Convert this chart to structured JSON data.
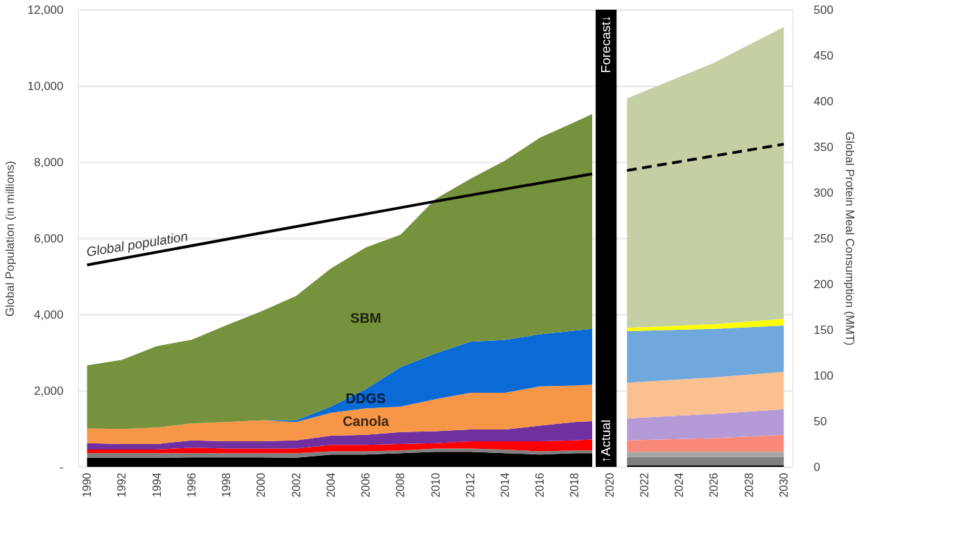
{
  "chart_data": {
    "type": "area",
    "ylabel": "Global Population (in millions)",
    "y2label": "Global Protein Meal Consumption (MMT)",
    "xlim": [
      1989.5,
      2030.5
    ],
    "xticks": [
      1990,
      1992,
      1994,
      1996,
      1998,
      2000,
      2002,
      2004,
      2006,
      2008,
      2010,
      2012,
      2014,
      2016,
      2018,
      2020,
      2022,
      2024,
      2026,
      2028,
      2030
    ],
    "ylim": [
      0,
      12000
    ],
    "yticks": [
      {
        "value": 0,
        "label": "-"
      },
      {
        "value": 2000,
        "label": "2,000"
      },
      {
        "value": 4000,
        "label": "4,000"
      },
      {
        "value": 6000,
        "label": "6,000"
      },
      {
        "value": 8000,
        "label": "8,000"
      },
      {
        "value": 10000,
        "label": "10,000"
      },
      {
        "value": 12000,
        "label": "12,000"
      }
    ],
    "y2lim": [
      0,
      500
    ],
    "y2ticks": [
      0,
      50,
      100,
      150,
      200,
      250,
      300,
      350,
      400,
      450,
      500
    ],
    "stacked": true,
    "grid": "y",
    "x": [
      1990,
      1992,
      1994,
      1996,
      1998,
      2000,
      2002,
      2004,
      2006,
      2008,
      2010,
      2012,
      2014,
      2016,
      2018,
      2019,
      2021,
      2026,
      2030
    ],
    "series": [
      {
        "color": "#000000",
        "axis": "y2",
        "values": [
          10,
          10,
          10,
          10.5,
          10.5,
          10.5,
          10,
          13.5,
          13.5,
          15,
          16.5,
          16.5,
          15,
          13.5,
          15,
          15,
          null,
          null,
          null
        ]
      },
      {
        "color": "#808080",
        "axis": "y2",
        "values": [
          5,
          5,
          5,
          4.5,
          4.5,
          4.5,
          5,
          3.5,
          3.5,
          3,
          3.5,
          3.5,
          4,
          3.5,
          3,
          3,
          null,
          null,
          null
        ]
      },
      {
        "color": "#ff0000",
        "axis": "y2",
        "values": [
          4,
          4,
          4,
          6,
          5,
          5,
          5,
          7,
          7,
          7,
          6,
          8,
          9,
          11,
          11,
          12,
          null,
          null,
          null
        ]
      },
      {
        "color": "#7030a0",
        "axis": "y2",
        "values": [
          7,
          6,
          6,
          8,
          8,
          8,
          9,
          10,
          11,
          13,
          13,
          13,
          13,
          17,
          20,
          20,
          null,
          null,
          null
        ]
      },
      {
        "name": "Canola",
        "color": "#f79646",
        "axis": "y2",
        "values": [
          16,
          16.5,
          18,
          18.5,
          21,
          23,
          20,
          25,
          29,
          28,
          35,
          40,
          40,
          43,
          40,
          40,
          null,
          null,
          null
        ]
      },
      {
        "name": "DDGS",
        "color": "#0a6ad6",
        "axis": "y2",
        "values": [
          0,
          0,
          0,
          0,
          0,
          0,
          2,
          7,
          21,
          43,
          50,
          56,
          58,
          57,
          60,
          61,
          null,
          null,
          null
        ]
      },
      {
        "name": "SBM",
        "color": "#76923c",
        "axis": "y2",
        "values": [
          69,
          75.5,
          89,
          91.5,
          106,
          119,
          136,
          151,
          155,
          145,
          169,
          178,
          196,
          215,
          228,
          235,
          null,
          null,
          null
        ]
      },
      {
        "color": "#000000",
        "axis": "y2",
        "values": [
          null,
          null,
          null,
          null,
          null,
          null,
          null,
          null,
          null,
          null,
          null,
          null,
          null,
          null,
          null,
          null,
          1.5,
          1.5,
          1.5
        ]
      },
      {
        "color": "#7f7f7f",
        "axis": "y2",
        "values": [
          null,
          null,
          null,
          null,
          null,
          null,
          null,
          null,
          null,
          null,
          null,
          null,
          null,
          null,
          null,
          null,
          9.5,
          9.5,
          9.5
        ]
      },
      {
        "color": "#a6a6a6",
        "axis": "y2",
        "values": [
          null,
          null,
          null,
          null,
          null,
          null,
          null,
          null,
          null,
          null,
          null,
          null,
          null,
          null,
          null,
          null,
          5.5,
          5.5,
          5.5
        ]
      },
      {
        "color": "#f9897a",
        "axis": "y2",
        "values": [
          null,
          null,
          null,
          null,
          null,
          null,
          null,
          null,
          null,
          null,
          null,
          null,
          null,
          null,
          null,
          null,
          12.5,
          15,
          18.5
        ]
      },
      {
        "color": "#b69ad8",
        "axis": "y2",
        "values": [
          null,
          null,
          null,
          null,
          null,
          null,
          null,
          null,
          null,
          null,
          null,
          null,
          null,
          null,
          null,
          null,
          24,
          26.5,
          28
        ]
      },
      {
        "color": "#fac090",
        "axis": "y2",
        "values": [
          null,
          null,
          null,
          null,
          null,
          null,
          null,
          null,
          null,
          null,
          null,
          null,
          null,
          null,
          null,
          null,
          39,
          40,
          41
        ]
      },
      {
        "color": "#6fa8dc",
        "axis": "y2",
        "values": [
          null,
          null,
          null,
          null,
          null,
          null,
          null,
          null,
          null,
          null,
          null,
          null,
          null,
          null,
          null,
          null,
          56.5,
          53,
          50.5
        ]
      },
      {
        "color": "#ffff00",
        "axis": "y2",
        "values": [
          null,
          null,
          null,
          null,
          null,
          null,
          null,
          null,
          null,
          null,
          null,
          null,
          null,
          null,
          null,
          null,
          3.5,
          5,
          7.5
        ]
      },
      {
        "color": "#c4d0a3",
        "axis": "y2",
        "values": [
          null,
          null,
          null,
          null,
          null,
          null,
          null,
          null,
          null,
          null,
          null,
          null,
          null,
          null,
          null,
          null,
          251,
          286,
          319
        ]
      },
      {
        "name": "Global population",
        "type": "line",
        "color": "#000000",
        "axis": "y",
        "line_style": "solid",
        "x": [
          1990,
          2000,
          2010,
          2019
        ],
        "values": [
          5300,
          6140,
          6970,
          7690
        ]
      },
      {
        "type": "line",
        "color": "#000000",
        "axis": "y",
        "line_style": "dashed",
        "x": [
          2021,
          2030
        ],
        "values": [
          7780,
          8470
        ]
      }
    ],
    "bands": [
      {
        "axis": "x",
        "from": 2019.2,
        "to": 2020.4,
        "color": "#000000"
      }
    ],
    "annotations": [
      "Forecast↓",
      "↑Actual"
    ]
  }
}
